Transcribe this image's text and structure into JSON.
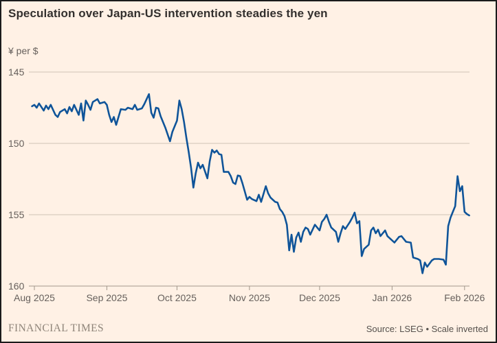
{
  "header": {
    "title": "Speculation over Japan-US intervention steadies the yen"
  },
  "footer": {
    "brand": "FINANCIAL TIMES",
    "source": "Source: LSEG • Scale inverted"
  },
  "colors": {
    "background": "#FFF1E5",
    "line": "#0F5499",
    "grid": "#CFC3B5",
    "axis_line": "#A0968A",
    "axis_text": "#66605C",
    "title_text": "#33302E"
  },
  "chart_data": {
    "type": "line",
    "title": "Speculation over Japan-US intervention steadies the yen",
    "xlabel": "",
    "ylabel": "¥ per $",
    "ylim": [
      145,
      160
    ],
    "y_inverted": true,
    "grid": "horizontal",
    "legend": "none",
    "y_ticks": [
      145,
      150,
      155,
      160
    ],
    "x_ticks": [
      {
        "date": "2025-08-01",
        "label": "Aug 2025"
      },
      {
        "date": "2025-09-01",
        "label": "Sep 2025"
      },
      {
        "date": "2025-10-01",
        "label": "Oct 2025"
      },
      {
        "date": "2025-11-01",
        "label": "Nov 2025"
      },
      {
        "date": "2025-12-01",
        "label": "Dec 2025"
      },
      {
        "date": "2026-01-01",
        "label": "Jan 2026"
      },
      {
        "date": "2026-02-01",
        "label": "Feb 2026"
      }
    ],
    "series": [
      {
        "name": "Yen per US dollar",
        "points": [
          [
            "2025-07-31",
            147.4
          ],
          [
            "2025-08-01",
            147.3
          ],
          [
            "2025-08-02",
            147.5
          ],
          [
            "2025-08-03",
            147.2
          ],
          [
            "2025-08-05",
            147.7
          ],
          [
            "2025-08-06",
            147.35
          ],
          [
            "2025-08-07",
            147.6
          ],
          [
            "2025-08-08",
            147.3
          ],
          [
            "2025-08-10",
            148.0
          ],
          [
            "2025-08-11",
            148.15
          ],
          [
            "2025-08-12",
            147.8
          ],
          [
            "2025-08-14",
            147.6
          ],
          [
            "2025-08-15",
            147.9
          ],
          [
            "2025-08-16",
            147.45
          ],
          [
            "2025-08-17",
            147.75
          ],
          [
            "2025-08-18",
            147.3
          ],
          [
            "2025-08-20",
            148.0
          ],
          [
            "2025-08-21",
            147.2
          ],
          [
            "2025-08-22",
            148.4
          ],
          [
            "2025-08-23",
            147.0
          ],
          [
            "2025-08-24",
            147.3
          ],
          [
            "2025-08-25",
            147.65
          ],
          [
            "2025-08-26",
            147.1
          ],
          [
            "2025-08-28",
            146.9
          ],
          [
            "2025-08-29",
            147.2
          ],
          [
            "2025-08-31",
            147.1
          ],
          [
            "2025-09-01",
            147.3
          ],
          [
            "2025-09-02",
            148.0
          ],
          [
            "2025-09-03",
            148.5
          ],
          [
            "2025-09-04",
            148.15
          ],
          [
            "2025-09-05",
            148.7
          ],
          [
            "2025-09-07",
            147.6
          ],
          [
            "2025-09-09",
            147.65
          ],
          [
            "2025-09-10",
            147.5
          ],
          [
            "2025-09-12",
            147.6
          ],
          [
            "2025-09-13",
            147.3
          ],
          [
            "2025-09-14",
            147.65
          ],
          [
            "2025-09-16",
            147.55
          ],
          [
            "2025-09-17",
            147.25
          ],
          [
            "2025-09-19",
            146.55
          ],
          [
            "2025-09-20",
            147.85
          ],
          [
            "2025-09-21",
            148.2
          ],
          [
            "2025-09-22",
            147.5
          ],
          [
            "2025-09-23",
            147.55
          ],
          [
            "2025-09-24",
            148.1
          ],
          [
            "2025-09-26",
            148.9
          ],
          [
            "2025-09-28",
            149.85
          ],
          [
            "2025-09-29",
            149.2
          ],
          [
            "2025-10-01",
            148.4
          ],
          [
            "2025-10-02",
            147.0
          ],
          [
            "2025-10-03",
            147.6
          ],
          [
            "2025-10-04",
            148.5
          ],
          [
            "2025-10-05",
            149.6
          ],
          [
            "2025-10-06",
            150.6
          ],
          [
            "2025-10-07",
            151.7
          ],
          [
            "2025-10-08",
            153.1
          ],
          [
            "2025-10-09",
            152.1
          ],
          [
            "2025-10-10",
            151.35
          ],
          [
            "2025-10-11",
            151.75
          ],
          [
            "2025-10-12",
            151.5
          ],
          [
            "2025-10-14",
            152.45
          ],
          [
            "2025-10-15",
            151.25
          ],
          [
            "2025-10-16",
            150.45
          ],
          [
            "2025-10-17",
            150.65
          ],
          [
            "2025-10-18",
            150.5
          ],
          [
            "2025-10-19",
            150.75
          ],
          [
            "2025-10-20",
            150.8
          ],
          [
            "2025-10-21",
            152.0
          ],
          [
            "2025-10-23",
            152.0
          ],
          [
            "2025-10-24",
            152.3
          ],
          [
            "2025-10-25",
            152.75
          ],
          [
            "2025-10-26",
            152.85
          ],
          [
            "2025-10-27",
            152.25
          ],
          [
            "2025-10-28",
            152.3
          ],
          [
            "2025-10-29",
            152.8
          ],
          [
            "2025-10-31",
            153.95
          ],
          [
            "2025-11-01",
            153.75
          ],
          [
            "2025-11-02",
            153.9
          ],
          [
            "2025-11-04",
            154.05
          ],
          [
            "2025-11-05",
            153.6
          ],
          [
            "2025-11-06",
            154.1
          ],
          [
            "2025-11-08",
            153.0
          ],
          [
            "2025-11-09",
            153.5
          ],
          [
            "2025-11-10",
            153.8
          ],
          [
            "2025-11-12",
            154.1
          ],
          [
            "2025-11-13",
            154.15
          ],
          [
            "2025-11-14",
            154.6
          ],
          [
            "2025-11-15",
            154.8
          ],
          [
            "2025-11-16",
            155.1
          ],
          [
            "2025-11-17",
            155.7
          ],
          [
            "2025-11-18",
            157.5
          ],
          [
            "2025-11-19",
            156.4
          ],
          [
            "2025-11-20",
            157.6
          ],
          [
            "2025-11-21",
            156.6
          ],
          [
            "2025-11-22",
            156.25
          ],
          [
            "2025-11-23",
            156.9
          ],
          [
            "2025-11-24",
            156.2
          ],
          [
            "2025-11-25",
            155.9
          ],
          [
            "2025-11-26",
            156.0
          ],
          [
            "2025-11-27",
            156.4
          ],
          [
            "2025-11-29",
            155.7
          ],
          [
            "2025-12-01",
            156.1
          ],
          [
            "2025-12-02",
            155.5
          ],
          [
            "2025-12-03",
            155.3
          ],
          [
            "2025-12-04",
            155.0
          ],
          [
            "2025-12-05",
            155.5
          ],
          [
            "2025-12-06",
            155.9
          ],
          [
            "2025-12-08",
            156.2
          ],
          [
            "2025-12-09",
            156.9
          ],
          [
            "2025-12-10",
            156.3
          ],
          [
            "2025-12-11",
            155.8
          ],
          [
            "2025-12-12",
            156.0
          ],
          [
            "2025-12-14",
            155.5
          ],
          [
            "2025-12-15",
            155.2
          ],
          [
            "2025-12-16",
            154.85
          ],
          [
            "2025-12-17",
            155.6
          ],
          [
            "2025-12-18",
            155.45
          ],
          [
            "2025-12-19",
            157.9
          ],
          [
            "2025-12-20",
            157.4
          ],
          [
            "2025-12-22",
            157.1
          ],
          [
            "2025-12-23",
            156.1
          ],
          [
            "2025-12-24",
            155.9
          ],
          [
            "2025-12-25",
            156.3
          ],
          [
            "2025-12-26",
            156.05
          ],
          [
            "2025-12-27",
            156.5
          ],
          [
            "2025-12-29",
            156.1
          ],
          [
            "2025-12-30",
            156.5
          ],
          [
            "2026-01-01",
            156.8
          ],
          [
            "2026-01-02",
            156.95
          ],
          [
            "2026-01-04",
            156.55
          ],
          [
            "2026-01-05",
            156.5
          ],
          [
            "2026-01-07",
            156.9
          ],
          [
            "2026-01-09",
            156.95
          ],
          [
            "2026-01-10",
            158.0
          ],
          [
            "2026-01-12",
            158.1
          ],
          [
            "2026-01-13",
            158.2
          ],
          [
            "2026-01-14",
            159.1
          ],
          [
            "2026-01-15",
            158.35
          ],
          [
            "2026-01-16",
            158.65
          ],
          [
            "2026-01-18",
            158.2
          ],
          [
            "2026-01-19",
            158.1
          ],
          [
            "2026-01-21",
            158.1
          ],
          [
            "2026-01-23",
            158.15
          ],
          [
            "2026-01-24",
            158.5
          ],
          [
            "2026-01-25",
            155.8
          ],
          [
            "2026-01-26",
            155.2
          ],
          [
            "2026-01-27",
            154.8
          ],
          [
            "2026-01-28",
            154.4
          ],
          [
            "2026-01-29",
            152.3
          ],
          [
            "2026-01-30",
            153.35
          ],
          [
            "2026-01-31",
            153.0
          ],
          [
            "2026-02-01",
            154.8
          ],
          [
            "2026-02-02",
            154.95
          ],
          [
            "2026-02-03",
            155.05
          ]
        ]
      }
    ]
  }
}
